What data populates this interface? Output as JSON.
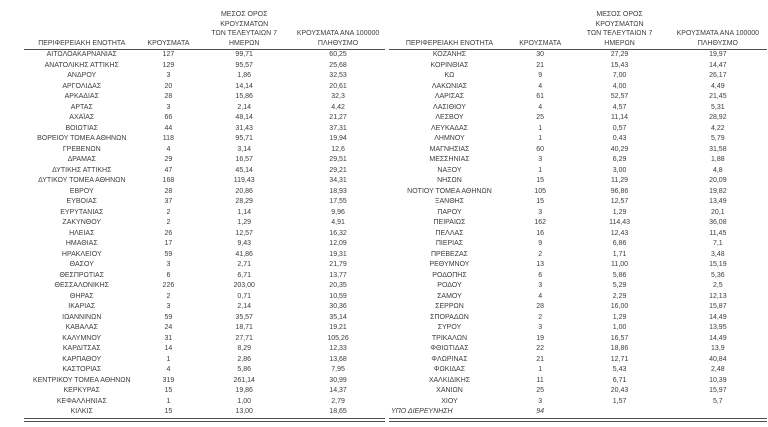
{
  "page": {
    "background": "#ffffff",
    "text_color": "#3c3c3c",
    "line_color": "#4d4d4d",
    "language": "el",
    "description": "Two side-by-side report tables of COVID-19 cases by Greek regional unit"
  },
  "columns": {
    "region": "ΠΕΡΙΦΕΡΕΙΑΚΗ ΕΝΟΤΗΤΑ",
    "cases": "ΚΡΟΥΣΜΑΤΑ",
    "avg7": "ΜΕΣΟΣ ΟΡΟΣ ΚΡΟΥΣΜΑΤΩΝ\nΤΩΝ ΤΕΛΕΥΤΑΙΩΝ 7\nΗΜΕΡΩΝ",
    "per100k": "ΚΡΟΥΣΜΑΤΑ ΑΝΑ 100000\nΠΛΗΘΥΣΜΟ"
  },
  "tables": [
    {
      "rows": [
        [
          "ΑΙΤΩΛΟΑΚΑΡΝΑΝΙΑΣ",
          "127",
          "99,71",
          "60,25"
        ],
        [
          "ΑΝΑΤΟΛΙΚΗΣ ΑΤΤΙΚΗΣ",
          "129",
          "95,57",
          "25,68"
        ],
        [
          "ΑΝΔΡΟΥ",
          "3",
          "1,86",
          "32,53"
        ],
        [
          "ΑΡΓΟΛΙΔΑΣ",
          "20",
          "14,14",
          "20,61"
        ],
        [
          "ΑΡΚΑΔΙΑΣ",
          "28",
          "15,86",
          "32,3"
        ],
        [
          "ΑΡΤΑΣ",
          "3",
          "2,14",
          "4,42"
        ],
        [
          "ΑΧΑΪΑΣ",
          "66",
          "48,14",
          "21,27"
        ],
        [
          "ΒΟΙΩΤΙΑΣ",
          "44",
          "31,43",
          "37,31"
        ],
        [
          "ΒΟΡΕΙΟΥ ΤΟΜΕΑ ΑΘΗΝΩΝ",
          "118",
          "95,71",
          "19,94"
        ],
        [
          "ΓΡΕΒΕΝΩΝ",
          "4",
          "3,14",
          "12,6"
        ],
        [
          "ΔΡΑΜΑΣ",
          "29",
          "16,57",
          "29,51"
        ],
        [
          "ΔΥΤΙΚΗΣ ΑΤΤΙΚΗΣ",
          "47",
          "45,14",
          "29,21"
        ],
        [
          "ΔΥΤΙΚΟΥ ΤΟΜΕΑ ΑΘΗΝΩΝ",
          "168",
          "119,43",
          "34,31"
        ],
        [
          "ΕΒΡΟΥ",
          "28",
          "20,86",
          "18,93"
        ],
        [
          "ΕΥΒΟΙΑΣ",
          "37",
          "28,29",
          "17,55"
        ],
        [
          "ΕΥΡΥΤΑΝΙΑΣ",
          "2",
          "1,14",
          "9,96"
        ],
        [
          "ΖΑΚΥΝΘΟΥ",
          "2",
          "1,29",
          "4,91"
        ],
        [
          "ΗΛΕΙΑΣ",
          "26",
          "12,57",
          "16,32"
        ],
        [
          "ΗΜΑΘΙΑΣ",
          "17",
          "9,43",
          "12,09"
        ],
        [
          "ΗΡΑΚΛΕΙΟΥ",
          "59",
          "41,86",
          "19,31"
        ],
        [
          "ΘΑΣΟΥ",
          "3",
          "2,71",
          "21,79"
        ],
        [
          "ΘΕΣΠΡΩΤΙΑΣ",
          "6",
          "6,71",
          "13,77"
        ],
        [
          "ΘΕΣΣΑΛΟΝΙΚΗΣ",
          "226",
          "203,00",
          "20,35"
        ],
        [
          "ΘΗΡΑΣ",
          "2",
          "0,71",
          "10,59"
        ],
        [
          "ΙΚΑΡΙΑΣ",
          "3",
          "2,14",
          "30,36"
        ],
        [
          "ΙΩΑΝΝΙΝΩΝ",
          "59",
          "35,57",
          "35,14"
        ],
        [
          "ΚΑΒΑΛΑΣ",
          "24",
          "18,71",
          "19,21"
        ],
        [
          "ΚΑΛΥΜΝΟΥ",
          "31",
          "27,71",
          "105,26"
        ],
        [
          "ΚΑΡΔΙΤΣΑΣ",
          "14",
          "8,29",
          "12,33"
        ],
        [
          "ΚΑΡΠΑΘΟΥ",
          "1",
          "2,86",
          "13,68"
        ],
        [
          "ΚΑΣΤΟΡΙΑΣ",
          "4",
          "5,86",
          "7,95"
        ],
        [
          "ΚΕΝΤΡΙΚΟΥ ΤΟΜΕΑ ΑΘΗΝΩΝ",
          "319",
          "261,14",
          "30,99"
        ],
        [
          "ΚΕΡΚΥΡΑΣ",
          "15",
          "19,86",
          "14,37"
        ],
        [
          "ΚΕΦΑΛΛΗΝΙΑΣ",
          "1",
          "1,00",
          "2,79"
        ],
        [
          "ΚΙΛΚΙΣ",
          "15",
          "13,00",
          "18,65"
        ]
      ],
      "last_row_italic": false
    },
    {
      "rows": [
        [
          "ΚΟΖΑΝΗΣ",
          "30",
          "27,29",
          "19,97"
        ],
        [
          "ΚΟΡΙΝΘΙΑΣ",
          "21",
          "15,43",
          "14,47"
        ],
        [
          "ΚΩ",
          "9",
          "7,00",
          "26,17"
        ],
        [
          "ΛΑΚΩΝΙΑΣ",
          "4",
          "4,00",
          "4,49"
        ],
        [
          "ΛΑΡΙΣΑΣ",
          "61",
          "52,57",
          "21,45"
        ],
        [
          "ΛΑΣΙΘΙΟΥ",
          "4",
          "4,57",
          "5,31"
        ],
        [
          "ΛΕΣΒΟΥ",
          "25",
          "11,14",
          "28,92"
        ],
        [
          "ΛΕΥΚΑΔΑΣ",
          "1",
          "0,57",
          "4,22"
        ],
        [
          "ΛΗΜΝΟΥ",
          "1",
          "0,43",
          "5,79"
        ],
        [
          "ΜΑΓΝΗΣΙΑΣ",
          "60",
          "40,29",
          "31,58"
        ],
        [
          "ΜΕΣΣΗΝΙΑΣ",
          "3",
          "6,29",
          "1,88"
        ],
        [
          "ΝΑΞΟΥ",
          "1",
          "3,00",
          "4,8"
        ],
        [
          "ΝΗΣΩΝ",
          "15",
          "11,29",
          "20,09"
        ],
        [
          "ΝΟΤΙΟΥ ΤΟΜΕΑ ΑΘΗΝΩΝ",
          "105",
          "96,86",
          "19,82"
        ],
        [
          "ΞΑΝΘΗΣ",
          "15",
          "12,57",
          "13,49"
        ],
        [
          "ΠΑΡΟΥ",
          "3",
          "1,29",
          "20,1"
        ],
        [
          "ΠΕΙΡΑΙΩΣ",
          "162",
          "114,43",
          "36,08"
        ],
        [
          "ΠΕΛΛΑΣ",
          "16",
          "12,43",
          "11,45"
        ],
        [
          "ΠΙΕΡΙΑΣ",
          "9",
          "6,86",
          "7,1"
        ],
        [
          "ΠΡΕΒΕΖΑΣ",
          "2",
          "1,71",
          "3,48"
        ],
        [
          "ΡΕΘΥΜΝΟΥ",
          "13",
          "11,00",
          "15,19"
        ],
        [
          "ΡΟΔΟΠΗΣ",
          "6",
          "5,86",
          "5,36"
        ],
        [
          "ΡΟΔΟΥ",
          "3",
          "5,29",
          "2,5"
        ],
        [
          "ΣΑΜΟΥ",
          "4",
          "2,29",
          "12,13"
        ],
        [
          "ΣΕΡΡΩΝ",
          "28",
          "16,00",
          "15,87"
        ],
        [
          "ΣΠΟΡΑΔΩΝ",
          "2",
          "1,29",
          "14,49"
        ],
        [
          "ΣΥΡΟΥ",
          "3",
          "1,00",
          "13,95"
        ],
        [
          "ΤΡΙΚΑΛΩΝ",
          "19",
          "16,57",
          "14,49"
        ],
        [
          "ΦΘΙΩΤΙΔΑΣ",
          "22",
          "18,86",
          "13,9"
        ],
        [
          "ΦΛΩΡΙΝΑΣ",
          "21",
          "12,71",
          "40,84"
        ],
        [
          "ΦΩΚΙΔΑΣ",
          "1",
          "5,43",
          "2,48"
        ],
        [
          "ΧΑΛΚΙΔΙΚΗΣ",
          "11",
          "6,71",
          "10,39"
        ],
        [
          "ΧΑΝΙΩΝ",
          "25",
          "20,43",
          "15,97"
        ],
        [
          "ΧΙΟΥ",
          "3",
          "1,57",
          "5,7"
        ],
        [
          "ΥΠΟ ΔΙΕΡΕΥΝΗΣΗ",
          "94",
          "",
          ""
        ]
      ],
      "last_row_italic": true
    }
  ]
}
